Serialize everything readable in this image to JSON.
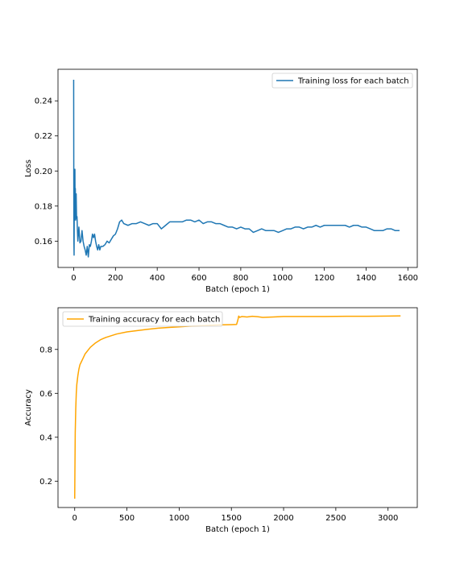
{
  "chart_data": [
    {
      "type": "line",
      "xlabel": "Batch (epoch 1)",
      "ylabel": "Loss",
      "xlim": [
        -75,
        1645
      ],
      "ylim": [
        0.145,
        0.258
      ],
      "xticks": [
        0,
        200,
        400,
        600,
        800,
        1000,
        1200,
        1400,
        1600
      ],
      "yticks": [
        0.16,
        0.18,
        0.2,
        0.22,
        0.24
      ],
      "ytick_labels": [
        "0.16",
        "0.18",
        "0.20",
        "0.22",
        "0.24"
      ],
      "legend_position": "upper right",
      "grid": false,
      "series": [
        {
          "name": "Training loss for each batch",
          "color": "#1f77b4",
          "x": [
            0,
            1,
            2,
            3,
            4,
            5,
            6,
            7,
            8,
            9,
            10,
            12,
            14,
            16,
            18,
            20,
            25,
            30,
            35,
            40,
            45,
            50,
            55,
            60,
            65,
            70,
            75,
            80,
            85,
            90,
            95,
            100,
            105,
            110,
            115,
            120,
            125,
            130,
            140,
            150,
            160,
            170,
            180,
            190,
            200,
            210,
            220,
            230,
            240,
            260,
            280,
            300,
            320,
            340,
            360,
            380,
            400,
            420,
            440,
            460,
            480,
            500,
            520,
            540,
            560,
            580,
            600,
            620,
            640,
            660,
            680,
            700,
            720,
            740,
            760,
            780,
            800,
            820,
            840,
            860,
            880,
            900,
            920,
            940,
            960,
            980,
            1000,
            1020,
            1040,
            1060,
            1080,
            1100,
            1120,
            1140,
            1160,
            1180,
            1200,
            1220,
            1240,
            1260,
            1280,
            1300,
            1320,
            1340,
            1360,
            1380,
            1400,
            1420,
            1440,
            1460,
            1480,
            1500,
            1520,
            1540,
            1560
          ],
          "y": [
            0.252,
            0.16,
            0.152,
            0.185,
            0.19,
            0.175,
            0.201,
            0.172,
            0.19,
            0.18,
            0.173,
            0.187,
            0.172,
            0.174,
            0.166,
            0.16,
            0.168,
            0.159,
            0.16,
            0.166,
            0.16,
            0.157,
            0.155,
            0.152,
            0.157,
            0.151,
            0.158,
            0.157,
            0.16,
            0.164,
            0.162,
            0.164,
            0.16,
            0.157,
            0.155,
            0.158,
            0.155,
            0.157,
            0.157,
            0.158,
            0.16,
            0.159,
            0.161,
            0.163,
            0.164,
            0.167,
            0.171,
            0.172,
            0.17,
            0.169,
            0.17,
            0.17,
            0.171,
            0.17,
            0.169,
            0.17,
            0.17,
            0.167,
            0.169,
            0.171,
            0.171,
            0.171,
            0.171,
            0.172,
            0.172,
            0.171,
            0.172,
            0.17,
            0.171,
            0.171,
            0.17,
            0.17,
            0.169,
            0.168,
            0.168,
            0.167,
            0.168,
            0.167,
            0.167,
            0.165,
            0.166,
            0.167,
            0.166,
            0.166,
            0.166,
            0.165,
            0.166,
            0.167,
            0.167,
            0.168,
            0.168,
            0.167,
            0.168,
            0.168,
            0.169,
            0.168,
            0.169,
            0.169,
            0.169,
            0.169,
            0.169,
            0.169,
            0.168,
            0.169,
            0.169,
            0.168,
            0.168,
            0.167,
            0.166,
            0.166,
            0.166,
            0.167,
            0.167,
            0.166,
            0.166
          ]
        }
      ]
    },
    {
      "type": "line",
      "xlabel": "Batch (epoch 1)",
      "ylabel": "Accuracy",
      "xlim": [
        -160,
        3280
      ],
      "ylim": [
        0.08,
        0.99
      ],
      "xticks": [
        0,
        500,
        1000,
        1500,
        2000,
        2500,
        3000
      ],
      "yticks": [
        0.2,
        0.4,
        0.6,
        0.8
      ],
      "ytick_labels": [
        "0.2",
        "0.4",
        "0.6",
        "0.8"
      ],
      "legend_position": "upper left",
      "grid": false,
      "series": [
        {
          "name": "Training accuracy for each batch",
          "color": "#ffa500",
          "x": [
            0,
            2,
            5,
            10,
            15,
            20,
            30,
            40,
            50,
            60,
            80,
            100,
            150,
            200,
            250,
            300,
            400,
            500,
            600,
            700,
            800,
            900,
            1000,
            1100,
            1200,
            1300,
            1400,
            1500,
            1550,
            1560,
            1565,
            1570,
            1580,
            1600,
            1650,
            1700,
            1750,
            1800,
            1900,
            2000,
            2200,
            2400,
            2600,
            2800,
            3000,
            3120
          ],
          "y": [
            0.12,
            0.25,
            0.42,
            0.53,
            0.6,
            0.64,
            0.68,
            0.71,
            0.73,
            0.74,
            0.76,
            0.78,
            0.81,
            0.83,
            0.845,
            0.855,
            0.87,
            0.88,
            0.886,
            0.892,
            0.897,
            0.9,
            0.903,
            0.906,
            0.908,
            0.91,
            0.912,
            0.913,
            0.914,
            0.93,
            0.94,
            0.952,
            0.946,
            0.95,
            0.948,
            0.951,
            0.949,
            0.946,
            0.948,
            0.95,
            0.95,
            0.95,
            0.951,
            0.951,
            0.952,
            0.953
          ]
        }
      ]
    }
  ]
}
